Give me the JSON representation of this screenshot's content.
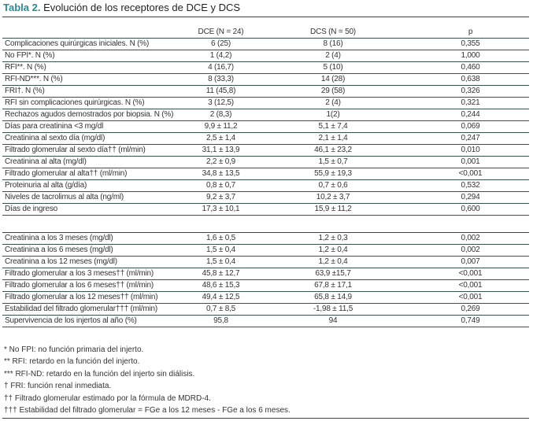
{
  "title": {
    "label": "Tabla 2.",
    "text": " Evolución de los receptores de DCE y DCS"
  },
  "header": {
    "col0": "",
    "col1": "DCE (N = 24)",
    "col2": "DCS (N = 50)",
    "col3": "p"
  },
  "block1": [
    [
      "Complicaciones quirúrgicas iniciales. N (%)",
      "6 (25)",
      "8 (16)",
      "0,355"
    ],
    [
      "No FPI*. N (%)",
      "1 (4,2)",
      "2 (4)",
      "1,000"
    ],
    [
      "RFI**. N (%)",
      "4 (16,7)",
      "5 (10)",
      "0,460"
    ],
    [
      "RFI-ND***. N (%)",
      "8 (33,3)",
      "14 (28)",
      "0,638"
    ],
    [
      "FRI†. N (%)",
      "11 (45,8)",
      "29 (58)",
      "0,326"
    ],
    [
      "RFI sin complicaciones quirúrgicas. N (%)",
      "3 (12,5)",
      "2 (4)",
      "0,321"
    ],
    [
      "Rechazos agudos demostrados por biopsia. N (%)",
      "2 (8,3)",
      "1(2)",
      "0,244"
    ],
    [
      "Días para creatinina <3 mg/dl",
      "9,9 ± 11,2",
      "5,1 ± 7,4",
      "0,069"
    ],
    [
      "Creatinina al sexto día (mg/dl)",
      "2,5 ± 1,4",
      "2,1 ± 1,4",
      "0,247"
    ],
    [
      "Filtrado glomerular al sexto día†† (ml/min)",
      "31,1 ± 13,9",
      "46,1 ± 23,2",
      "0,010"
    ],
    [
      "Creatinina al alta (mg/dl)",
      "2,2 ± 0,9",
      "1,5 ± 0,7",
      "0,001"
    ],
    [
      "Filtrado glomerular al alta†† (ml/min)",
      "34,8 ± 13,5",
      "55,9 ± 19,3",
      "<0,001"
    ],
    [
      "Proteinuria al alta (g/día)",
      "0,8 ± 0,7",
      "0,7 ± 0,6",
      "0,532"
    ],
    [
      "Niveles de tacrolimus al alta (ng/ml)",
      "9,2 ± 3,7",
      "10,2 ± 3,7",
      "0,294"
    ],
    [
      "Días de ingreso",
      "17,3 ± 10,1",
      "15,9 ± 11,2",
      "0,600"
    ]
  ],
  "block2": [
    [
      "Creatinina a los 3 meses (mg/dl)",
      "1,6 ± 0,5",
      "1,2 ± 0,3",
      "0,002"
    ],
    [
      "Creatinina a los 6 meses (mg/dl)",
      "1,5 ± 0,4",
      "1,2 ± 0,4",
      "0,002"
    ],
    [
      "Creatinina a los 12 meses (mg/dl)",
      "1,5 ± 0,4",
      "1,2 ± 0,4",
      "0,007"
    ],
    [
      "Filtrado glomerular a los 3 meses†† (ml/min)",
      "45,8 ± 12,7",
      "63,9 ±15,7",
      "<0,001"
    ],
    [
      "Filtrado glomerular a los 6 meses†† (ml/min)",
      "48,6 ± 15,3",
      "67,8 ± 17,1",
      "<0,001"
    ],
    [
      "Filtrado glomerular a los 12 meses†† (ml/min)",
      "49,4 ± 12,5",
      "65,8 ± 14,9",
      "<0,001"
    ],
    [
      "Estabilidad del filtrado glomerular††† (ml/min)",
      "0,7 ± 8,5",
      "-1,98 ± 11,5",
      "0,269"
    ],
    [
      "Supervivencia de los injertos al año (%)",
      "95,8",
      "94",
      "0,749"
    ]
  ],
  "footnotes": [
    "* No FPI: no función primaria del injerto.",
    "** RFI: retardo en la función del injerto.",
    "*** RFI-ND: retardo en la función del injerto sin diálisis.",
    "† FRI: función renal inmediata.",
    "†† Filtrado glomerular estimado por la fórmula de MDRD-4.",
    "††† Estabilidad del filtrado glomerular = FGe a los 12 meses - FGe a los 6 meses."
  ]
}
